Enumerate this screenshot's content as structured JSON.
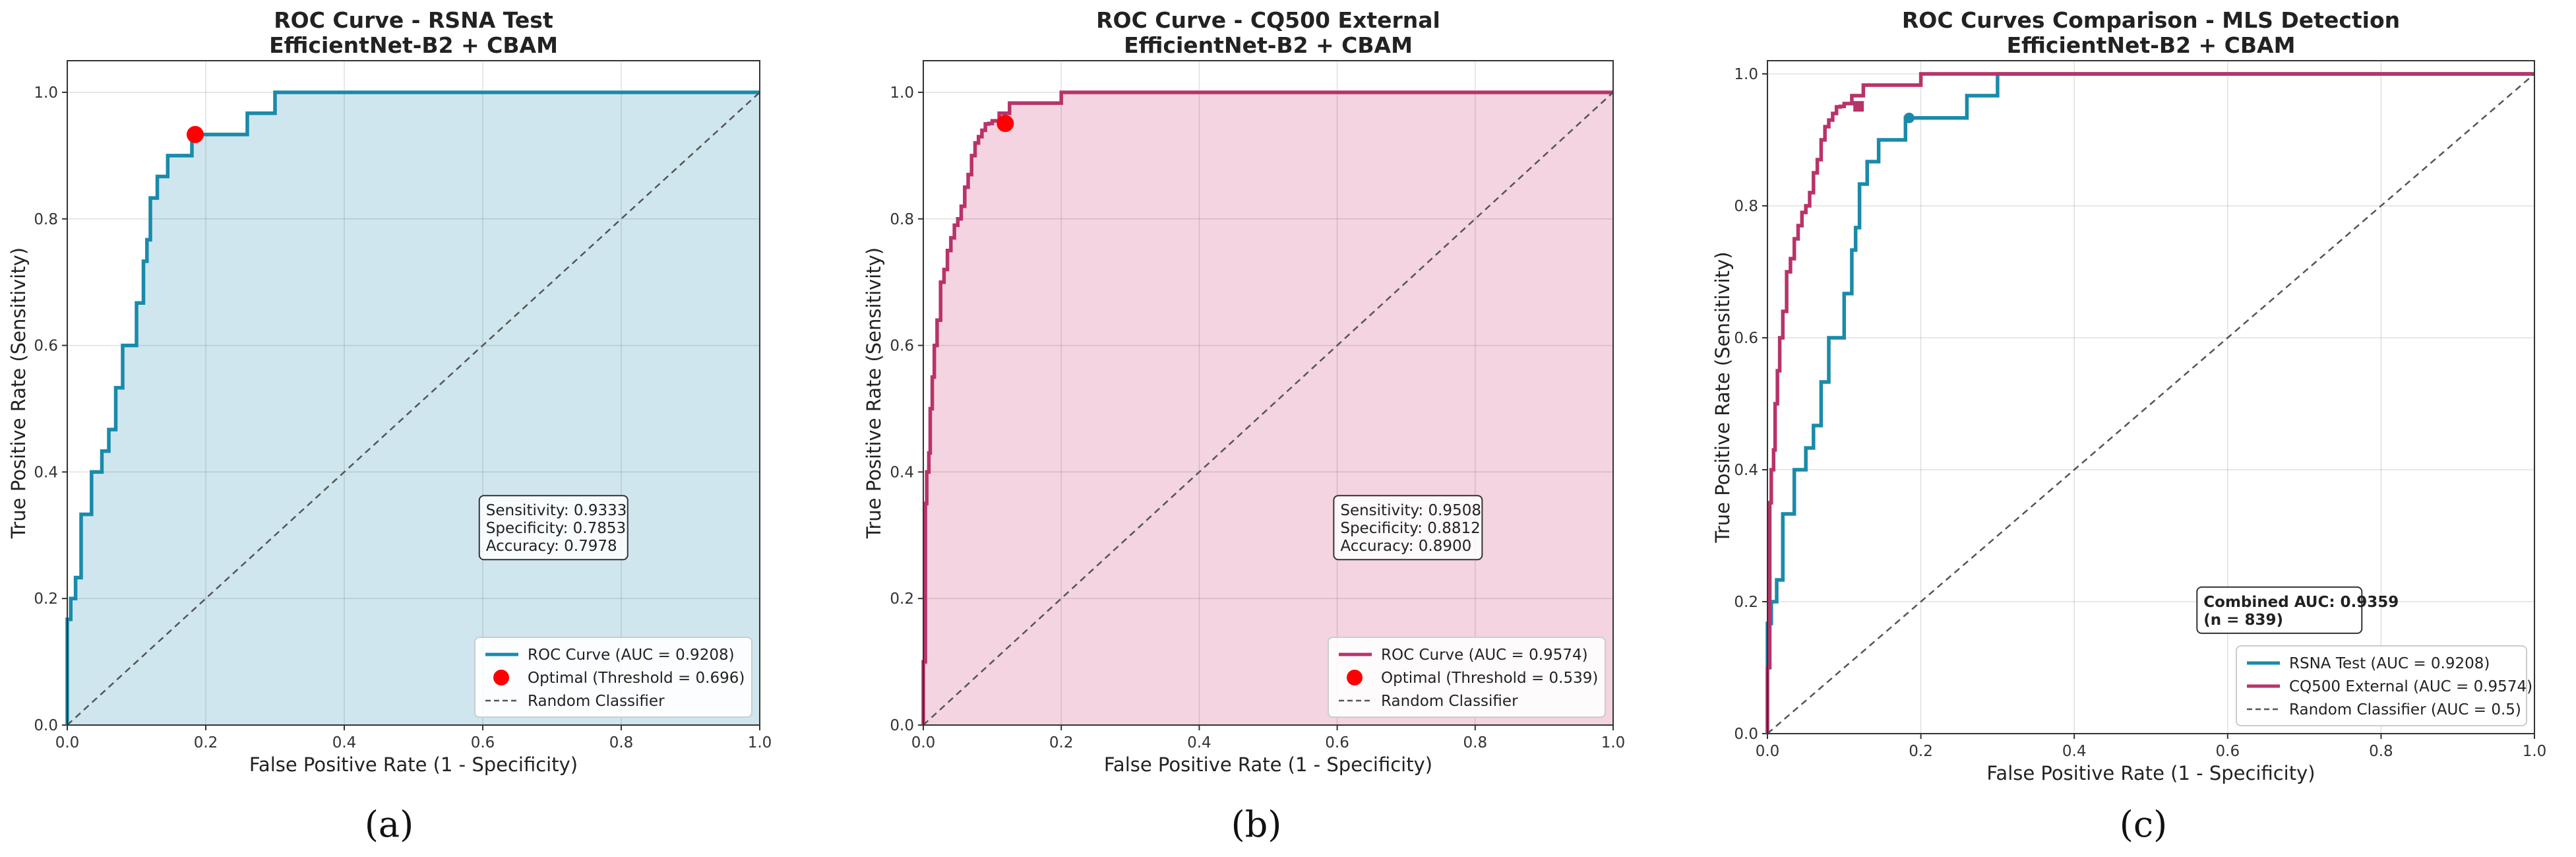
{
  "chart_data": [
    {
      "type": "line",
      "title": "ROC Curve - RSNA Test",
      "subtitle": "EfficientNet-B2 + CBAM",
      "xlabel": "False Positive Rate (1 - Specificity)",
      "ylabel": "True Positive Rate (Sensitivity)",
      "xlim": [
        0,
        1
      ],
      "ylim": [
        0,
        1.05
      ],
      "xticks": [
        "0.0",
        "0.2",
        "0.4",
        "0.6",
        "0.8",
        "1.0"
      ],
      "yticks": [
        "0.0",
        "0.2",
        "0.4",
        "0.6",
        "0.8",
        "1.0"
      ],
      "grid": true,
      "legend_position": "lower-right",
      "fill_under_curve": true,
      "colors": {
        "curve": "#1a8aaa",
        "fill": "#cfe6ee",
        "optimal": "#ff0000",
        "random": "#555555"
      },
      "series": [
        {
          "name": "ROC Curve (AUC = 0.9208)",
          "style": "solid",
          "x": [
            0,
            0,
            0.005,
            0.005,
            0.012,
            0.012,
            0.02,
            0.02,
            0.035,
            0.035,
            0.05,
            0.05,
            0.06,
            0.06,
            0.07,
            0.07,
            0.08,
            0.08,
            0.1,
            0.1,
            0.11,
            0.11,
            0.115,
            0.115,
            0.12,
            0.12,
            0.13,
            0.13,
            0.145,
            0.145,
            0.16,
            0.16,
            0.18,
            0.18,
            0.26,
            0.26,
            0.3,
            0.3,
            1.0
          ],
          "y": [
            0,
            0.167,
            0.167,
            0.2,
            0.2,
            0.233,
            0.233,
            0.333,
            0.333,
            0.4,
            0.4,
            0.433,
            0.433,
            0.467,
            0.467,
            0.533,
            0.533,
            0.6,
            0.6,
            0.667,
            0.667,
            0.733,
            0.733,
            0.767,
            0.767,
            0.833,
            0.833,
            0.867,
            0.867,
            0.9,
            0.9,
            0.9,
            0.9,
            0.9333,
            0.9333,
            0.967,
            0.967,
            1.0,
            1.0
          ]
        },
        {
          "name": "Optimal (Threshold = 0.696)",
          "style": "marker",
          "x": [
            0.1847
          ],
          "y": [
            0.9333
          ]
        },
        {
          "name": "Random Classifier",
          "style": "dashed",
          "x": [
            0,
            1
          ],
          "y": [
            0,
            1
          ]
        }
      ],
      "info_box": [
        "Sensitivity: 0.9333",
        "Specificity: 0.7853",
        "Accuracy: 0.7978"
      ],
      "panel_label": "(a)"
    },
    {
      "type": "line",
      "title": "ROC Curve - CQ500 External",
      "subtitle": "EfficientNet-B2 + CBAM",
      "xlabel": "False Positive Rate (1 - Specificity)",
      "ylabel": "True Positive Rate (Sensitivity)",
      "xlim": [
        0,
        1
      ],
      "ylim": [
        0,
        1.05
      ],
      "xticks": [
        "0.0",
        "0.2",
        "0.4",
        "0.6",
        "0.8",
        "1.0"
      ],
      "yticks": [
        "0.0",
        "0.2",
        "0.4",
        "0.6",
        "0.8",
        "1.0"
      ],
      "grid": true,
      "legend_position": "lower-right",
      "fill_under_curve": true,
      "colors": {
        "curve": "#b8336a",
        "fill": "#f3d4e0",
        "optimal": "#ff0000",
        "random": "#555555"
      },
      "series": [
        {
          "name": "ROC Curve (AUC = 0.9574)",
          "style": "solid",
          "x": [
            0,
            0,
            0.003,
            0.003,
            0.005,
            0.005,
            0.008,
            0.008,
            0.01,
            0.01,
            0.013,
            0.013,
            0.016,
            0.016,
            0.02,
            0.02,
            0.025,
            0.025,
            0.03,
            0.03,
            0.035,
            0.035,
            0.04,
            0.04,
            0.045,
            0.045,
            0.05,
            0.05,
            0.055,
            0.055,
            0.06,
            0.06,
            0.065,
            0.065,
            0.07,
            0.07,
            0.075,
            0.075,
            0.08,
            0.08,
            0.085,
            0.085,
            0.09,
            0.09,
            0.095,
            0.095,
            0.1,
            0.1,
            0.11,
            0.11,
            0.125,
            0.125,
            0.2,
            0.2,
            0.38,
            0.38,
            1.0
          ],
          "y": [
            0,
            0.1,
            0.1,
            0.35,
            0.35,
            0.4,
            0.4,
            0.43,
            0.43,
            0.5,
            0.5,
            0.55,
            0.55,
            0.6,
            0.6,
            0.64,
            0.64,
            0.7,
            0.7,
            0.72,
            0.72,
            0.75,
            0.75,
            0.77,
            0.77,
            0.79,
            0.79,
            0.8,
            0.8,
            0.82,
            0.82,
            0.85,
            0.85,
            0.87,
            0.87,
            0.9,
            0.9,
            0.92,
            0.92,
            0.93,
            0.93,
            0.94,
            0.94,
            0.95,
            0.95,
            0.9508,
            0.9508,
            0.955,
            0.955,
            0.967,
            0.967,
            0.983,
            0.983,
            1.0,
            1.0,
            1.0,
            1.0
          ]
        },
        {
          "name": "Optimal (Threshold = 0.539)",
          "style": "marker",
          "x": [
            0.1188
          ],
          "y": [
            0.9508
          ]
        },
        {
          "name": "Random Classifier",
          "style": "dashed",
          "x": [
            0,
            1
          ],
          "y": [
            0,
            1
          ]
        }
      ],
      "info_box": [
        "Sensitivity: 0.9508",
        "Specificity: 0.8812",
        "Accuracy: 0.8900"
      ],
      "panel_label": "(b)"
    },
    {
      "type": "line",
      "title": "ROC Curves Comparison - MLS Detection",
      "subtitle": "EfficientNet-B2 + CBAM",
      "xlabel": "False Positive Rate (1 - Specificity)",
      "ylabel": "True Positive Rate (Sensitivity)",
      "xlim": [
        0,
        1
      ],
      "ylim": [
        0,
        1.02
      ],
      "xticks": [
        "0.0",
        "0.2",
        "0.4",
        "0.6",
        "0.8",
        "1.0"
      ],
      "yticks": [
        "0.0",
        "0.2",
        "0.4",
        "0.6",
        "0.8",
        "1.0"
      ],
      "grid": true,
      "legend_position": "lower-right",
      "fill_under_curve": false,
      "colors": {
        "rsna": "#1a8aaa",
        "cq500": "#b8336a",
        "random": "#555555"
      },
      "series": [
        {
          "name": "RSNA Test (AUC = 0.9208)",
          "style": "solid",
          "x": [
            0,
            0,
            0.005,
            0.005,
            0.012,
            0.012,
            0.02,
            0.02,
            0.035,
            0.035,
            0.05,
            0.05,
            0.06,
            0.06,
            0.07,
            0.07,
            0.08,
            0.08,
            0.1,
            0.1,
            0.11,
            0.11,
            0.115,
            0.115,
            0.12,
            0.12,
            0.13,
            0.13,
            0.145,
            0.145,
            0.16,
            0.16,
            0.18,
            0.18,
            0.26,
            0.26,
            0.3,
            0.3,
            1.0
          ],
          "y": [
            0,
            0.167,
            0.167,
            0.2,
            0.2,
            0.233,
            0.233,
            0.333,
            0.333,
            0.4,
            0.4,
            0.433,
            0.433,
            0.467,
            0.467,
            0.533,
            0.533,
            0.6,
            0.6,
            0.667,
            0.667,
            0.733,
            0.733,
            0.767,
            0.767,
            0.833,
            0.833,
            0.867,
            0.867,
            0.9,
            0.9,
            0.9,
            0.9,
            0.9333,
            0.9333,
            0.967,
            0.967,
            1.0,
            1.0
          ]
        },
        {
          "name": "CQ500 External (AUC = 0.9574)",
          "style": "solid",
          "x": [
            0,
            0,
            0.003,
            0.003,
            0.005,
            0.005,
            0.008,
            0.008,
            0.01,
            0.01,
            0.013,
            0.013,
            0.016,
            0.016,
            0.02,
            0.02,
            0.025,
            0.025,
            0.03,
            0.03,
            0.035,
            0.035,
            0.04,
            0.04,
            0.045,
            0.045,
            0.05,
            0.05,
            0.055,
            0.055,
            0.06,
            0.06,
            0.065,
            0.065,
            0.07,
            0.07,
            0.075,
            0.075,
            0.08,
            0.08,
            0.085,
            0.085,
            0.09,
            0.09,
            0.095,
            0.095,
            0.1,
            0.1,
            0.11,
            0.11,
            0.125,
            0.125,
            0.2,
            0.2,
            0.38,
            0.38,
            1.0
          ],
          "y": [
            0,
            0.1,
            0.1,
            0.35,
            0.35,
            0.4,
            0.4,
            0.43,
            0.43,
            0.5,
            0.5,
            0.55,
            0.55,
            0.6,
            0.6,
            0.64,
            0.64,
            0.7,
            0.7,
            0.72,
            0.72,
            0.75,
            0.75,
            0.77,
            0.77,
            0.79,
            0.79,
            0.8,
            0.8,
            0.82,
            0.82,
            0.85,
            0.85,
            0.87,
            0.87,
            0.9,
            0.9,
            0.92,
            0.92,
            0.93,
            0.93,
            0.94,
            0.94,
            0.95,
            0.95,
            0.9508,
            0.9508,
            0.955,
            0.955,
            0.967,
            0.967,
            0.983,
            0.983,
            1.0,
            1.0,
            1.0,
            1.0
          ]
        },
        {
          "name": "Random Classifier (AUC = 0.5)",
          "style": "dashed",
          "x": [
            0,
            1
          ],
          "y": [
            0,
            1
          ]
        }
      ],
      "optimal_markers": [
        {
          "series": "RSNA Test (AUC = 0.9208)",
          "x": 0.1847,
          "y": 0.9333,
          "shape": "circle"
        },
        {
          "series": "CQ500 External (AUC = 0.9574)",
          "x": 0.1188,
          "y": 0.9508,
          "shape": "square"
        }
      ],
      "info_box": [
        "Combined AUC: 0.9359",
        "(n = 839)"
      ],
      "panel_label": "(c)"
    }
  ]
}
